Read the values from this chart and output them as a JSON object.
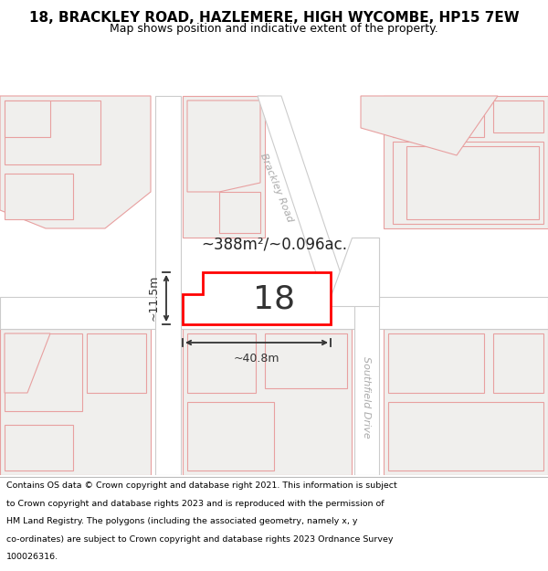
{
  "title": "18, BRACKLEY ROAD, HAZLEMERE, HIGH WYCOMBE, HP15 7EW",
  "subtitle": "Map shows position and indicative extent of the property.",
  "footer_lines": [
    "Contains OS data © Crown copyright and database right 2021. This information is subject",
    "to Crown copyright and database rights 2023 and is reproduced with the permission of",
    "HM Land Registry. The polygons (including the associated geometry, namely x, y",
    "co-ordinates) are subject to Crown copyright and database rights 2023 Ordnance Survey",
    "100026316."
  ],
  "map_bg": "#ffffff",
  "parcel_fill": "#f0efed",
  "parcel_edge": "#e8a0a0",
  "road_fill": "#ffffff",
  "road_edge": "#cccccc",
  "prop_fill": "#ffffff",
  "prop_edge": "#ff0000",
  "area_text": "~388m²/~0.096ac.",
  "width_text": "~40.8m",
  "height_text": "~11.5m",
  "property_number": "18",
  "dim_color": "#333333",
  "label_color": "#aaaaaa",
  "title_fontsize": 11,
  "subtitle_fontsize": 9,
  "footer_fontsize": 6.8
}
